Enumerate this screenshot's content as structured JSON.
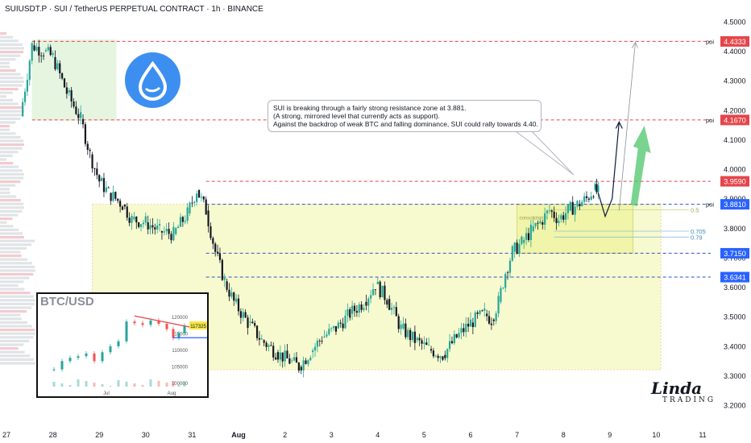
{
  "header": {
    "title": "SUIUSDT.P · SUI / TetherUS PERPETUAL CONTRACT · 1h · BINANCE"
  },
  "colors": {
    "up": "#26a69a",
    "down": "#131722",
    "resistance": "#e5454b",
    "support": "#2f54c8",
    "zone": "#f1f6a8",
    "arrow": "#0b1a3a",
    "green_arrow": "#4cc56b",
    "price_red": "#e5454b",
    "price_blue": "#2962ff"
  },
  "callout": {
    "lines": [
      "SUI is breaking through a fairly strong resistance zone at 3.881.",
      "(A strong, mirrored level that currently acts as support).",
      "Against the backdrop of weak BTC and falling dominance, SUI could rally towards 4.40."
    ]
  },
  "fib": {
    "consolidation_label": "consolidation",
    "levels": [
      "0.5",
      "0.705",
      "0.79"
    ]
  },
  "inset": {
    "title": "BTC/USD",
    "x_ticks": [
      "Jul",
      "Aug"
    ],
    "y_ticks": [
      "120000",
      "115000",
      "110000",
      "105000",
      "100000"
    ],
    "price_tag": "117325"
  },
  "branding": {
    "line1": "Linda",
    "line2": "TRADING"
  },
  "logo": "sui-logo-icon",
  "chart_data": {
    "type": "line",
    "title": "SUIUSDT.P · SUI / TetherUS PERPETUAL CONTRACT · 1h · BINANCE",
    "x_ticks": [
      "27",
      "28",
      "29",
      "30",
      "31",
      "Aug",
      "2",
      "3",
      "4",
      "5",
      "6",
      "7",
      "8",
      "9",
      "10",
      "11"
    ],
    "y_ticks": [
      "4.5000",
      "4.4000",
      "4.3000",
      "4.2000",
      "4.1000",
      "4.0000",
      "3.9000",
      "3.8000",
      "3.7000",
      "3.6000",
      "3.5000",
      "3.4000",
      "3.3000",
      "3.2000"
    ],
    "ylim": [
      3.14,
      4.56
    ],
    "horizontal_levels": [
      {
        "value": 4.4333,
        "label": "4.4333",
        "tag": "poi",
        "style": "resistance"
      },
      {
        "value": 4.167,
        "label": "4.1670",
        "tag": "poi",
        "style": "resistance"
      },
      {
        "value": 3.959,
        "label": "3.9590",
        "tag": "",
        "style": "resistance"
      },
      {
        "value": 3.881,
        "label": "3.8810",
        "tag": "poi",
        "style": "support"
      },
      {
        "value": 3.715,
        "label": "3.7150",
        "tag": "",
        "style": "support"
      },
      {
        "value": 3.6341,
        "label": "3.6341",
        "tag": "",
        "style": "support"
      }
    ],
    "price_path": [
      [
        0.3,
        4.18
      ],
      [
        0.55,
        4.42
      ],
      [
        0.8,
        4.4
      ],
      [
        1.0,
        4.38
      ],
      [
        1.3,
        4.26
      ],
      [
        1.6,
        4.17
      ],
      [
        1.8,
        4.05
      ],
      [
        2.0,
        3.96
      ],
      [
        2.2,
        3.92
      ],
      [
        2.5,
        3.88
      ],
      [
        2.7,
        3.83
      ],
      [
        3.0,
        3.82
      ],
      [
        3.3,
        3.79
      ],
      [
        3.6,
        3.78
      ],
      [
        3.9,
        3.85
      ],
      [
        4.1,
        3.93
      ],
      [
        4.3,
        3.86
      ],
      [
        4.5,
        3.72
      ],
      [
        4.7,
        3.62
      ],
      [
        4.9,
        3.55
      ],
      [
        5.2,
        3.48
      ],
      [
        5.5,
        3.42
      ],
      [
        5.8,
        3.38
      ],
      [
        6.1,
        3.35
      ],
      [
        6.3,
        3.33
      ],
      [
        6.55,
        3.38
      ],
      [
        6.8,
        3.43
      ],
      [
        7.1,
        3.46
      ],
      [
        7.4,
        3.51
      ],
      [
        7.7,
        3.55
      ],
      [
        7.95,
        3.61
      ],
      [
        8.2,
        3.56
      ],
      [
        8.5,
        3.46
      ],
      [
        8.8,
        3.42
      ],
      [
        9.1,
        3.39
      ],
      [
        9.4,
        3.37
      ],
      [
        9.7,
        3.43
      ],
      [
        10.0,
        3.48
      ],
      [
        10.3,
        3.51
      ],
      [
        10.45,
        3.49
      ],
      [
        10.6,
        3.55
      ],
      [
        10.75,
        3.65
      ],
      [
        10.9,
        3.72
      ],
      [
        11.1,
        3.75
      ],
      [
        11.3,
        3.79
      ],
      [
        11.5,
        3.82
      ],
      [
        11.7,
        3.86
      ],
      [
        11.9,
        3.83
      ],
      [
        12.1,
        3.86
      ],
      [
        12.3,
        3.88
      ],
      [
        12.5,
        3.9
      ],
      [
        12.65,
        3.93
      ],
      [
        12.75,
        3.92
      ]
    ],
    "projection": [
      [
        12.75,
        3.92
      ],
      [
        12.9,
        3.84
      ],
      [
        13.05,
        3.9
      ],
      [
        13.2,
        4.16
      ]
    ],
    "target_arrow": {
      "from": [
        13.2,
        3.86
      ],
      "to": [
        13.55,
        4.43
      ]
    }
  }
}
